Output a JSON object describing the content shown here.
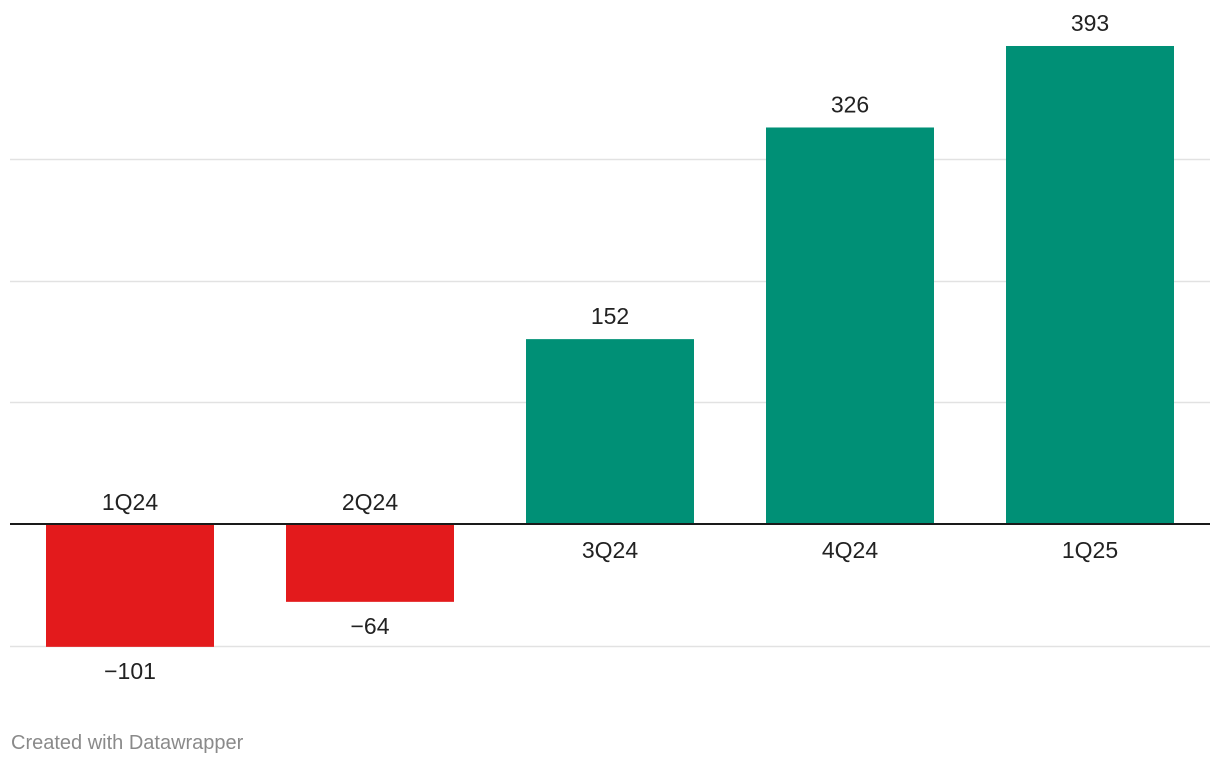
{
  "chart_data": {
    "type": "bar",
    "categories": [
      "1Q24",
      "2Q24",
      "3Q24",
      "4Q24",
      "1Q25"
    ],
    "values": [
      -101,
      -64,
      152,
      326,
      393
    ],
    "value_labels": [
      "−101",
      "−64",
      "152",
      "326",
      "393"
    ],
    "ylim": [
      -101,
      393
    ],
    "gridlines": [
      -100,
      100,
      200,
      300
    ],
    "grid": true,
    "colors": {
      "positive": "#009076",
      "negative": "#e31a1c",
      "grid": "#e2e2e2",
      "baseline": "#1a1a1a",
      "text": "#222222"
    }
  },
  "footer": {
    "credit": "Created with Datawrapper"
  }
}
